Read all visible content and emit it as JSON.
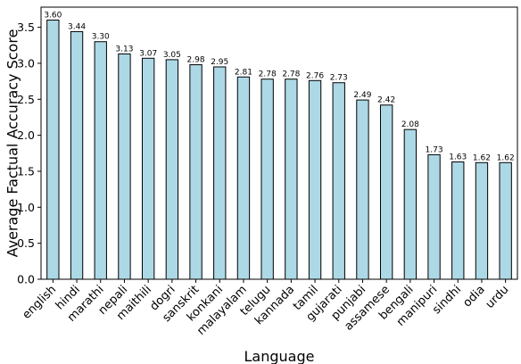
{
  "chart_data": {
    "type": "bar",
    "xlabel": "Language",
    "ylabel": "Average Factual Accuracy Score",
    "categories": [
      "english",
      "hindi",
      "marathi",
      "nepali",
      "maithili",
      "dogri",
      "sanskrit",
      "konkani",
      "malayalam",
      "telugu",
      "kannada",
      "tamil",
      "gujarati",
      "punjabi",
      "assamese",
      "bengali",
      "manipuri",
      "sindhi",
      "odia",
      "urdu"
    ],
    "values": [
      3.6,
      3.44,
      3.3,
      3.13,
      3.07,
      3.05,
      2.98,
      2.95,
      2.81,
      2.78,
      2.78,
      2.76,
      2.73,
      2.49,
      2.42,
      2.08,
      1.73,
      1.63,
      1.62,
      1.62
    ],
    "value_labels": [
      "3.60",
      "3.44",
      "3.30",
      "3.13",
      "3.07",
      "3.05",
      "2.98",
      "2.95",
      "2.81",
      "2.78",
      "2.78",
      "2.76",
      "2.73",
      "2.49",
      "2.42",
      "2.08",
      "1.73",
      "1.63",
      "1.62",
      "1.62"
    ],
    "yticks": [
      0.0,
      0.5,
      1.0,
      1.5,
      2.0,
      2.5,
      3.0,
      3.5
    ],
    "ytick_labels": [
      "0.0",
      "0.5",
      "1.0",
      "1.5",
      "2.0",
      "2.5",
      "3.0",
      "3.5"
    ],
    "ylim": [
      0,
      3.78
    ],
    "grid": false,
    "bar_color": "#add8e6",
    "edge_color": "#000000"
  }
}
